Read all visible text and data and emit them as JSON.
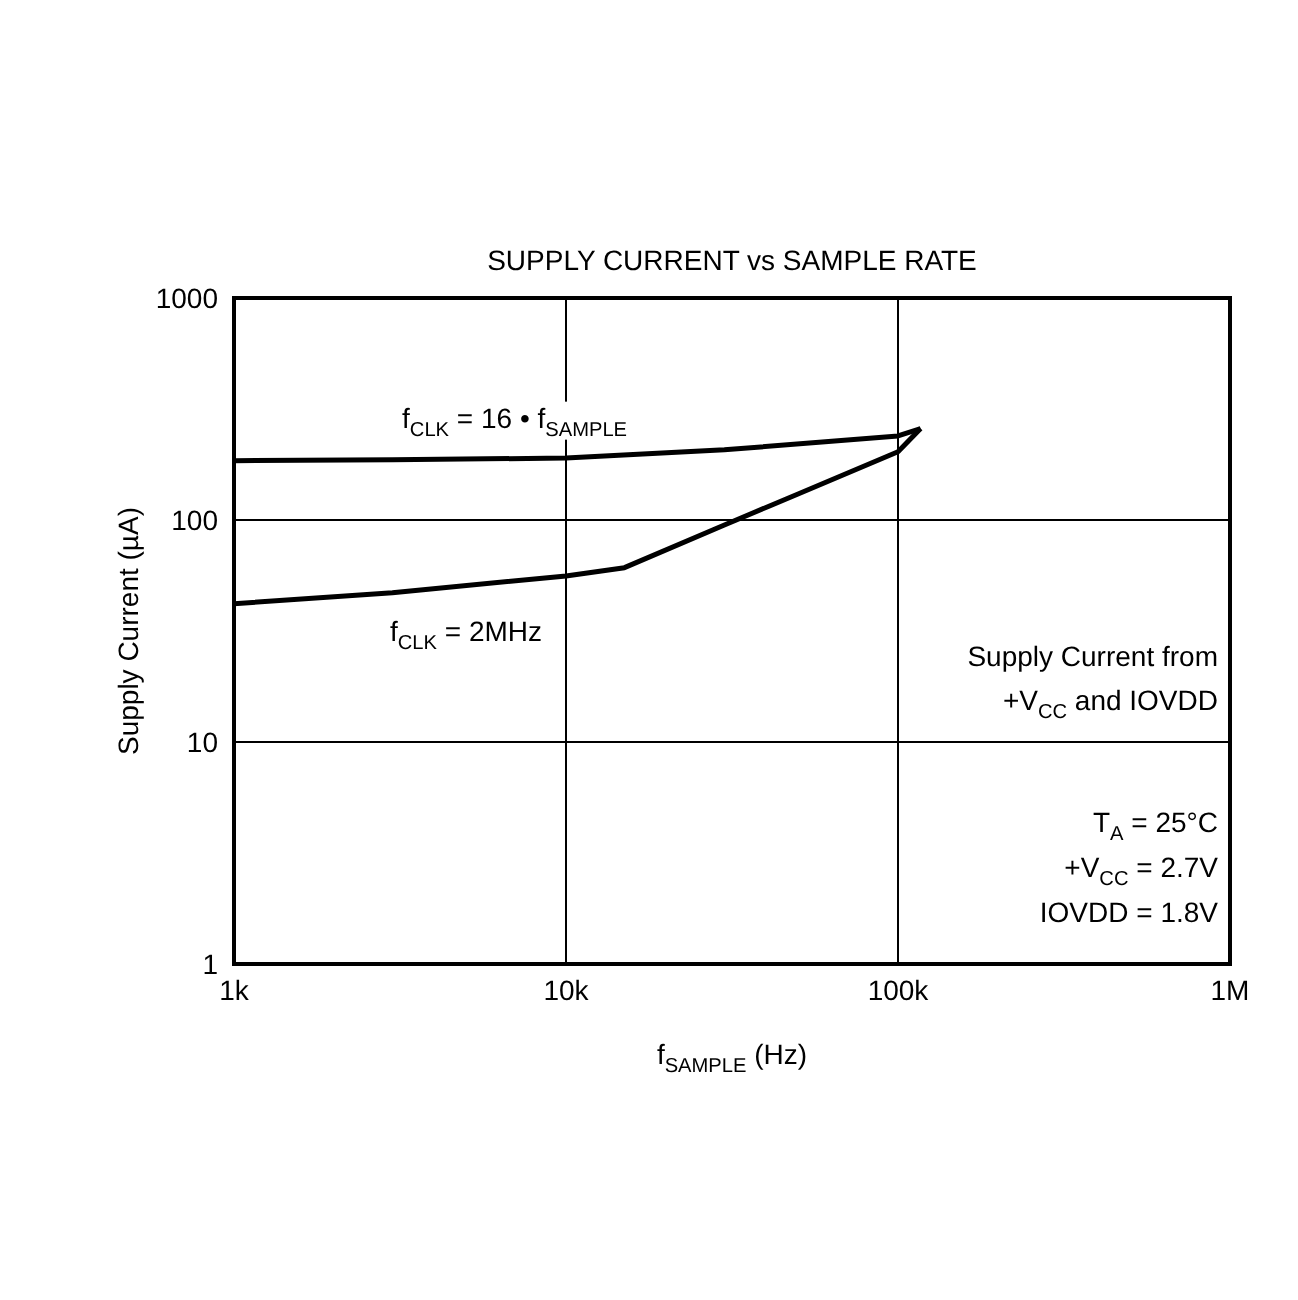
{
  "chart_data": {
    "type": "line",
    "title": "SUPPLY CURRENT vs SAMPLE RATE",
    "xlabel": "f$_{SAMPLE}$ (Hz)",
    "ylabel": "Supply Current (µA)",
    "series": [
      {
        "color": "#000000",
        "x": [
          1000,
          3000,
          10000,
          30000,
          100000,
          117000
        ],
        "values": [
          185,
          187,
          190,
          207,
          239,
          258
        ]
      },
      {
        "color": "#000000",
        "x": [
          1000,
          3000,
          10000,
          15000,
          30000,
          50000,
          100000,
          117000
        ],
        "values": [
          42,
          47,
          56,
          61,
          95,
          131,
          203,
          258
        ]
      }
    ],
    "log": "xy",
    "xlim": [
      1000,
      1000000
    ],
    "ylim": [
      1,
      1000
    ],
    "xticks": [
      {
        "value": 1000,
        "label": "1k"
      },
      {
        "value": 10000,
        "label": "10k"
      },
      {
        "value": 100000,
        "label": "100k"
      },
      {
        "value": 1000000,
        "label": "1M"
      }
    ],
    "yticks": [
      1,
      10,
      100,
      1000
    ],
    "grid": true,
    "marker": "none",
    "line_style": "solid",
    "annotations": [
      {
        "text": "f$_{CLK}$ = 16 • f$_{SAMPLE}$",
        "x": 7000,
        "y": 187
      },
      {
        "text": "f$_{CLK}$ = 2MHz",
        "x": 5000,
        "y": 45
      },
      "Supply Current from",
      "+V$_{CC}$ and IOVDD",
      "T$_{A}$ = 25°C",
      "+V$_{CC}$ = 2.7V",
      "IOVDD = 1.8V"
    ]
  }
}
